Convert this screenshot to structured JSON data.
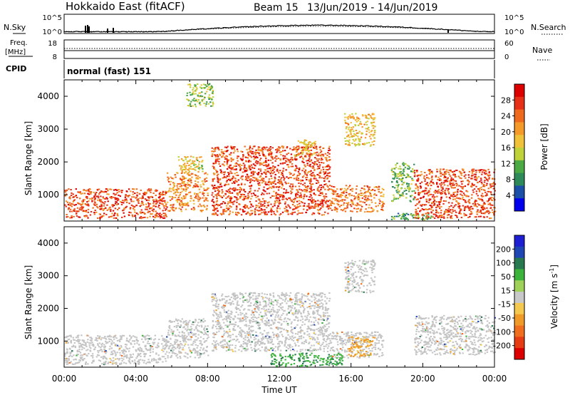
{
  "header": {
    "station": "Hokkaido East (fitACF)",
    "beam": "Beam 15",
    "dates": "13/Jun/2019 - 14/Jun/2019"
  },
  "top_panels": {
    "nsky_label": "N.Sky",
    "nsky_ticks": [
      "10^5",
      "10^0"
    ],
    "nsearch_label": "N.Search",
    "nsearch_ticks": [
      "10^5",
      "10^0"
    ],
    "freq_label": "Freq.",
    "freq_unit": "[MHz]",
    "freq_ticks": [
      "18",
      "8"
    ],
    "nave_label": "Nave",
    "nave_ticks": [
      "60",
      "0"
    ],
    "cpid_label": "CPID",
    "cpid_value": "normal (fast) 151"
  },
  "colors": {
    "power_scale": [
      "#0000ee",
      "#1c4fa8",
      "#2f8a5a",
      "#4caa45",
      "#bfd23a",
      "#f0c23a",
      "#f59a28",
      "#f06a1e",
      "#e83018",
      "#dc0000"
    ],
    "velocity_scale": [
      "#1e1ed2",
      "#1e46b4",
      "#287850",
      "#3cb43c",
      "#a0d25a",
      "#c8c8c8",
      "#f5c850",
      "#f09b28",
      "#f06e1e",
      "#e63c14",
      "#dc0000"
    ],
    "background_echo": "#c4c4c4"
  },
  "chart_data": [
    {
      "type": "heatmap",
      "ylabel": "Slant Range [km]",
      "yticks": [
        "4000",
        "3000",
        "2000",
        "1000"
      ],
      "ylim": [
        200,
        4500
      ],
      "xlim": [
        "00:00",
        "24:00"
      ],
      "colorbar": {
        "label": "Power [dB]",
        "ticks": [
          "28",
          "24",
          "20",
          "16",
          "12",
          "8",
          "4"
        ],
        "range": [
          0,
          32
        ]
      },
      "regions": [
        {
          "t0": 0.0,
          "t1": 5.7,
          "r0": 300,
          "r1": 1200,
          "value": 26
        },
        {
          "t0": 5.7,
          "t1": 8.0,
          "r0": 500,
          "r1": 1700,
          "value": 22
        },
        {
          "t0": 6.3,
          "t1": 7.7,
          "r0": 1700,
          "r1": 2200,
          "value": 17
        },
        {
          "t0": 8.2,
          "t1": 14.8,
          "r0": 400,
          "r1": 2500,
          "value": 26
        },
        {
          "t0": 12.8,
          "t1": 14.0,
          "r0": 2200,
          "r1": 2700,
          "value": 18
        },
        {
          "t0": 14.8,
          "t1": 17.8,
          "r0": 500,
          "r1": 1300,
          "value": 23
        },
        {
          "t0": 15.6,
          "t1": 17.3,
          "r0": 2500,
          "r1": 3500,
          "value": 18
        },
        {
          "t0": 18.2,
          "t1": 19.5,
          "r0": 800,
          "r1": 2000,
          "value": 12
        },
        {
          "t0": 18.0,
          "t1": 20.5,
          "r0": 250,
          "r1": 450,
          "value": 10
        },
        {
          "t0": 19.5,
          "t1": 24.0,
          "r0": 300,
          "r1": 1800,
          "value": 26
        },
        {
          "t0": 6.8,
          "t1": 8.3,
          "r0": 3700,
          "r1": 4400,
          "value": 14
        }
      ]
    },
    {
      "type": "heatmap",
      "ylabel": "Slant Range [km]",
      "yticks": [
        "4000",
        "3000",
        "2000",
        "1000"
      ],
      "ylim": [
        200,
        4500
      ],
      "xlim": [
        "00:00",
        "24:00"
      ],
      "xticks": [
        "00:00",
        "04:00",
        "08:00",
        "12:00",
        "16:00",
        "20:00",
        "00:00"
      ],
      "xlabel": "Time UT",
      "colorbar": {
        "label": "Velocity [m s^-1]",
        "ticks": [
          "200",
          "100",
          "50",
          "15",
          "-15",
          "-50",
          "-100",
          "-200"
        ],
        "range": [
          -250,
          250
        ]
      },
      "regions": [
        {
          "t0": 0.0,
          "t1": 5.7,
          "r0": 300,
          "r1": 1200,
          "value": 0
        },
        {
          "t0": 5.7,
          "t1": 8.0,
          "r0": 500,
          "r1": 1700,
          "value": 0
        },
        {
          "t0": 8.2,
          "t1": 14.8,
          "r0": 700,
          "r1": 2500,
          "value": 0
        },
        {
          "t0": 14.8,
          "t1": 17.8,
          "r0": 500,
          "r1": 1300,
          "value": 0
        },
        {
          "t0": 15.8,
          "t1": 17.2,
          "r0": 550,
          "r1": 1150,
          "value": -60
        },
        {
          "t0": 11.5,
          "t1": 15.5,
          "r0": 250,
          "r1": 650,
          "value": 40
        },
        {
          "t0": 19.5,
          "t1": 24.0,
          "r0": 600,
          "r1": 1800,
          "value": 0
        },
        {
          "t0": 15.6,
          "t1": 17.3,
          "r0": 2500,
          "r1": 3500,
          "value": 0
        }
      ]
    }
  ]
}
